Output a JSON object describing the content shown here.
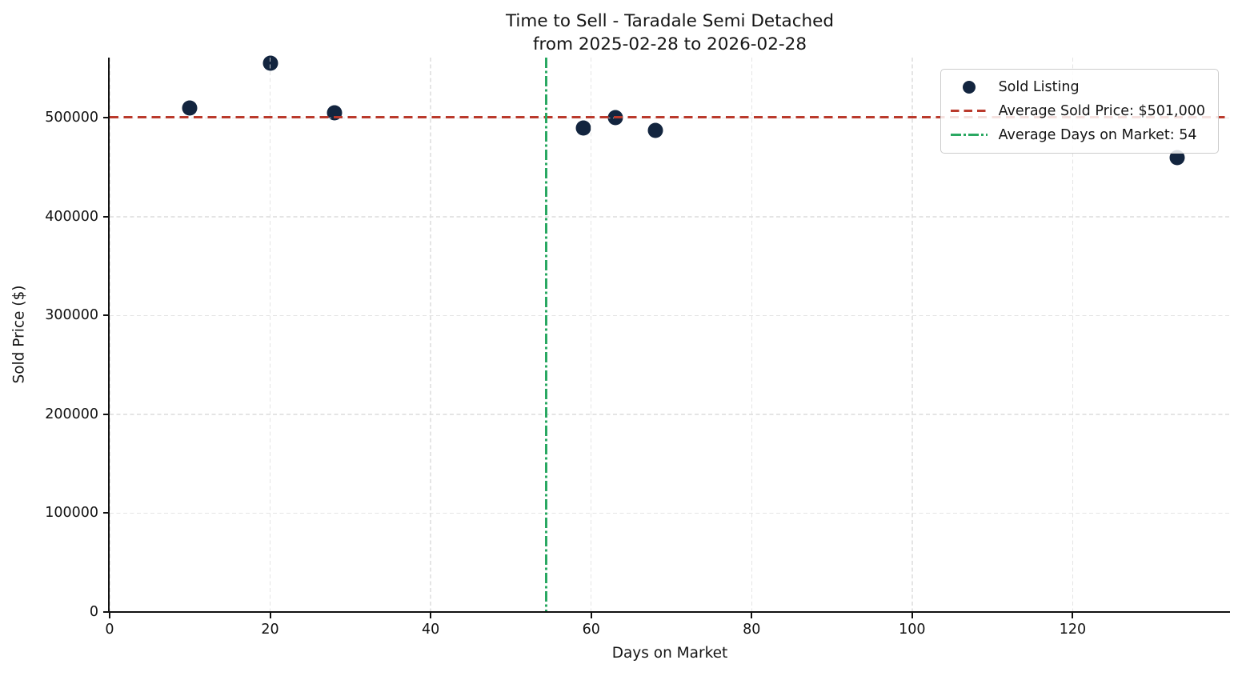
{
  "title": {
    "line1": "Time to Sell - Taradale Semi Detached",
    "line2": "from 2025-02-28 to 2026-02-28"
  },
  "axes": {
    "xlabel": "Days on Market",
    "ylabel": "Sold Price ($)"
  },
  "legend": {
    "items": [
      {
        "label": "Sold Listing",
        "marker": "dot",
        "color": "#13253f"
      },
      {
        "label": "Average Sold Price: $501,000",
        "marker": "dash",
        "color": "#ba3a2c"
      },
      {
        "label": "Average Days on Market: 54",
        "marker": "dashdot",
        "color": "#2aa862"
      }
    ]
  },
  "chart_data": {
    "type": "scatter",
    "series": [
      {
        "name": "Sold Listing",
        "points": [
          {
            "days_on_market": 10,
            "sold_price": 510000
          },
          {
            "days_on_market": 20,
            "sold_price": 555000
          },
          {
            "days_on_market": 28,
            "sold_price": 505000
          },
          {
            "days_on_market": 59,
            "sold_price": 490000
          },
          {
            "days_on_market": 63,
            "sold_price": 500000
          },
          {
            "days_on_market": 68,
            "sold_price": 487000
          },
          {
            "days_on_market": 133,
            "sold_price": 460000
          }
        ]
      }
    ],
    "average_sold_price": 501000,
    "average_days_on_market": 54,
    "title": "Time to Sell - Taradale Semi Detached from 2025-02-28 to 2026-02-28",
    "xlabel": "Days on Market",
    "ylabel": "Sold Price ($)",
    "xlim": [
      0,
      139.6
    ],
    "ylim": [
      0,
      561000
    ],
    "xticks": [
      0,
      20,
      40,
      60,
      80,
      100,
      120
    ],
    "yticks": [
      0,
      100000,
      200000,
      300000,
      400000,
      500000
    ],
    "grid": true,
    "grid_style": "light-dashed",
    "legend_position": "upper right",
    "colors": {
      "point": "#13253f",
      "avg_price_line": "#ba3a2c",
      "avg_days_line": "#2aa862",
      "gridline": "#e0e0e0"
    }
  }
}
